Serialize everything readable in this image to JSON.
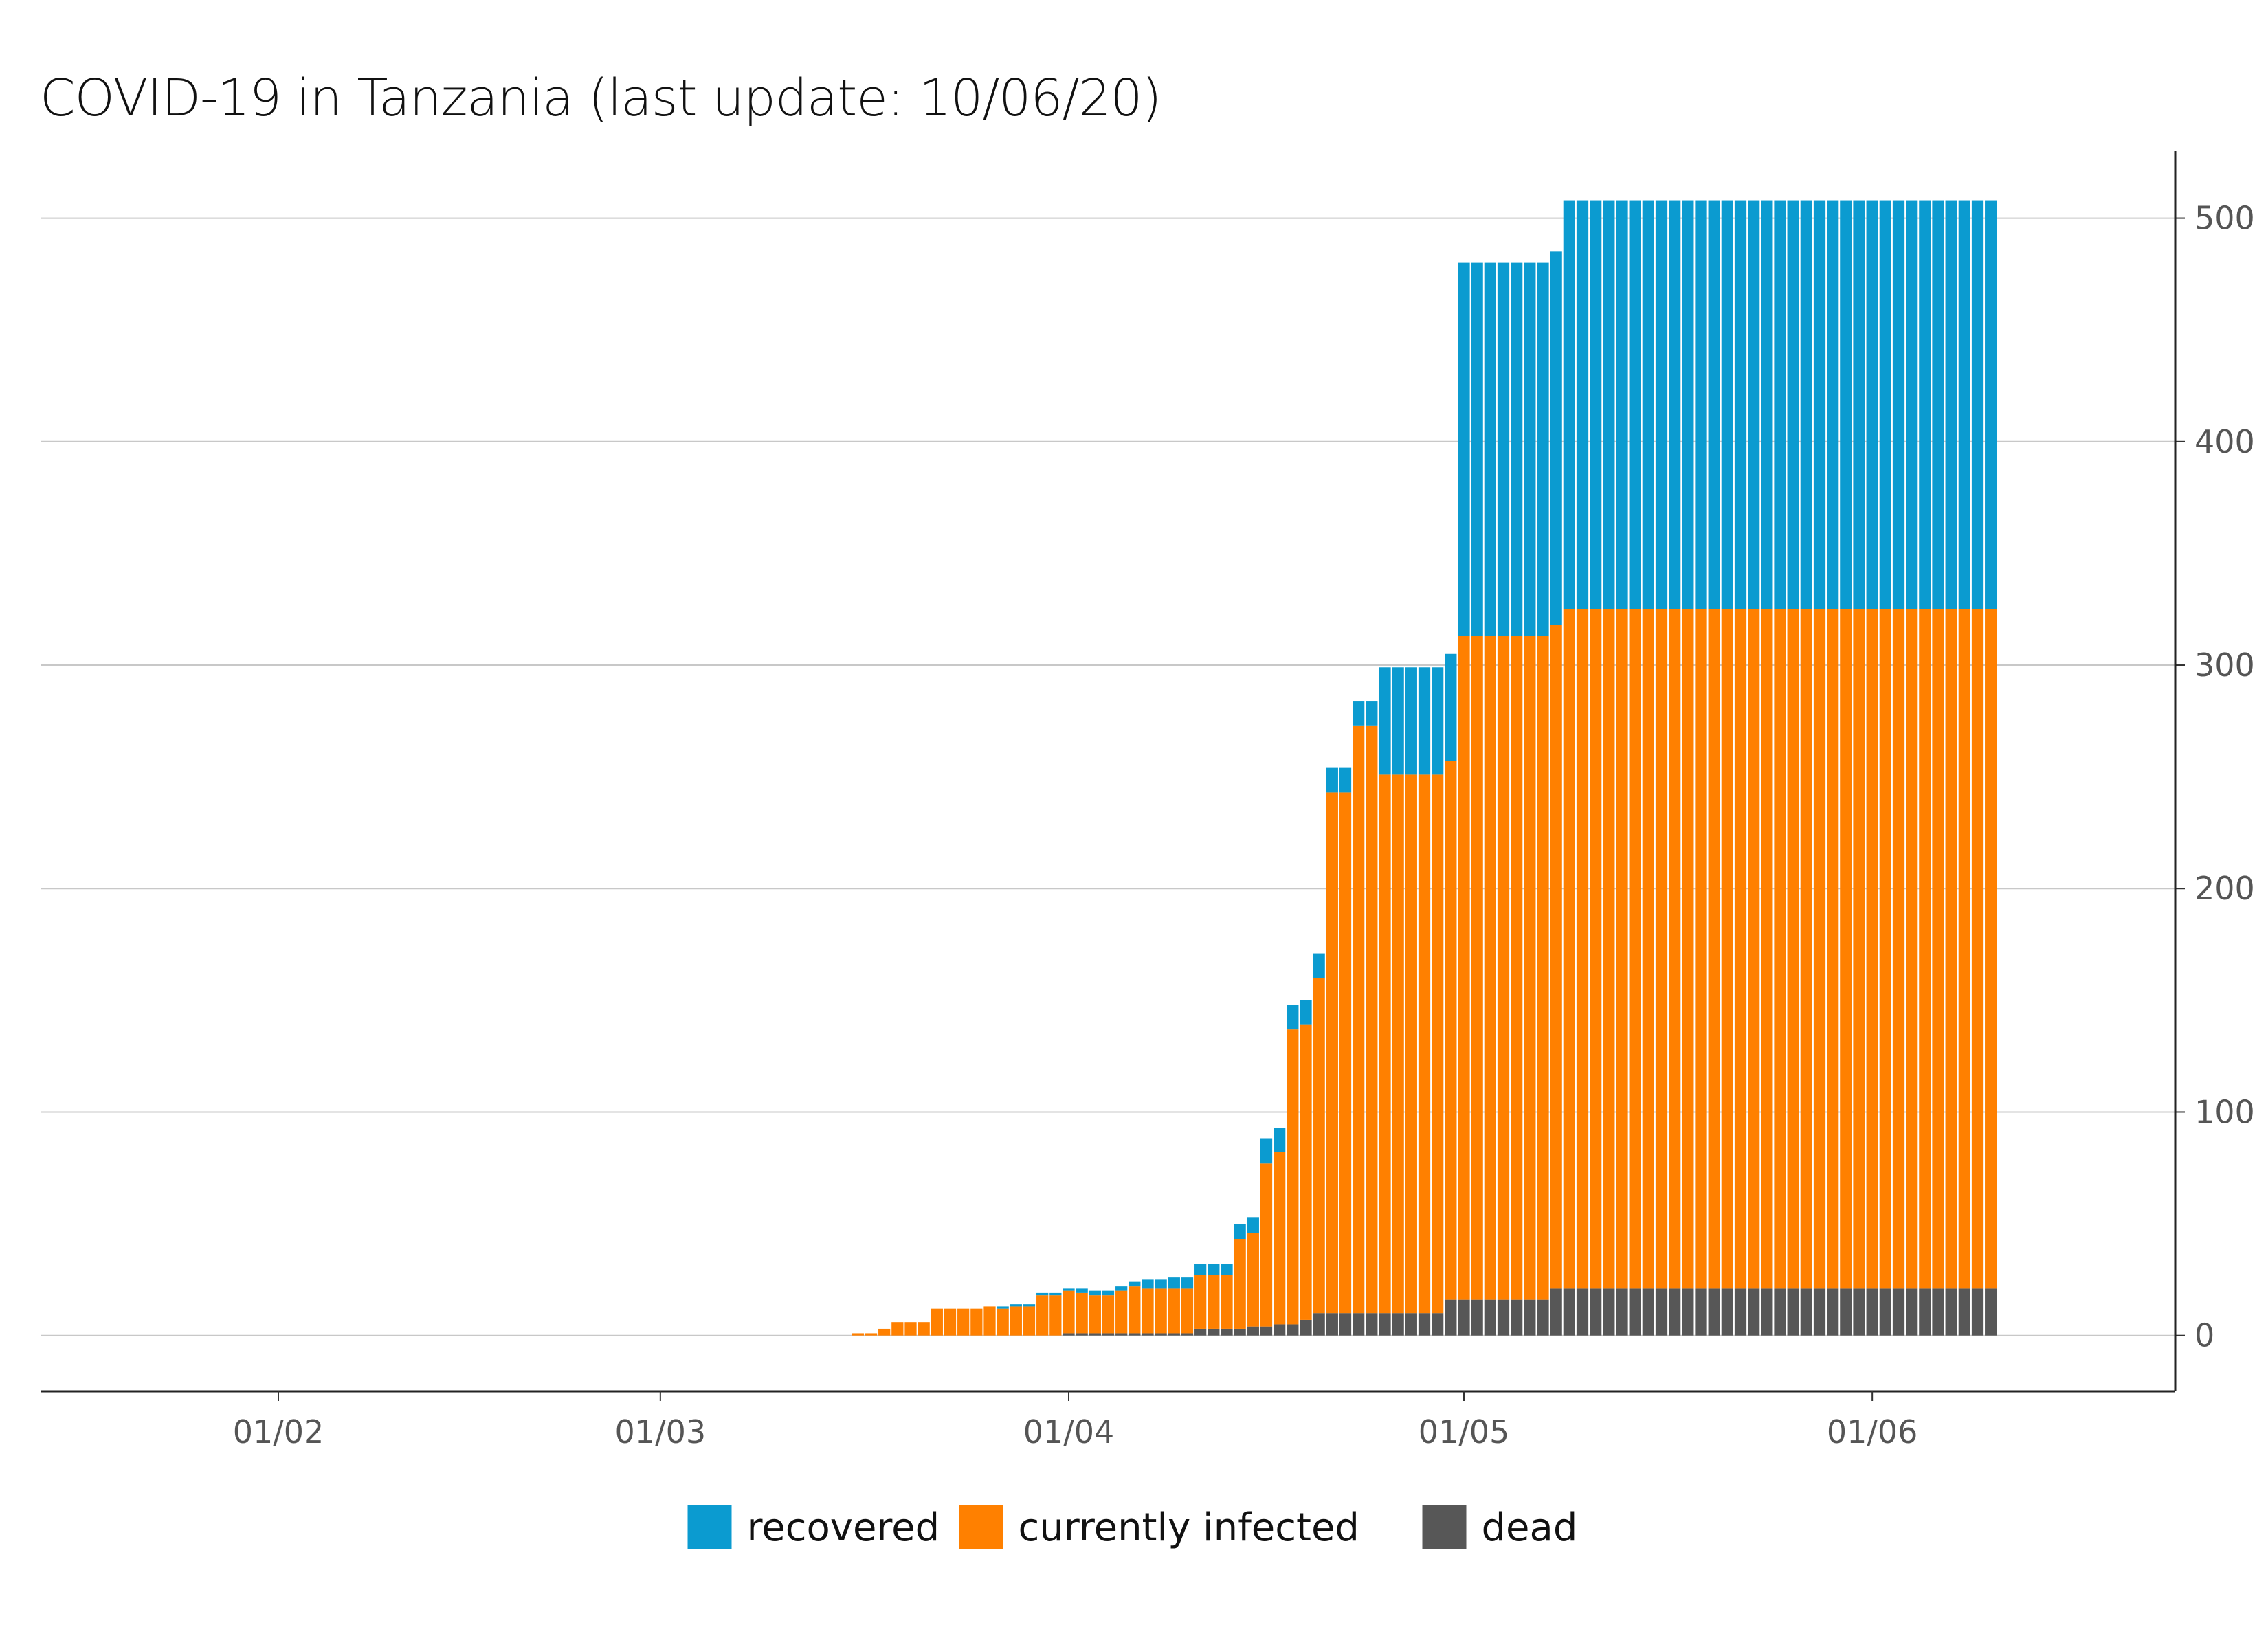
{
  "chart_data": {
    "type": "bar",
    "stacked": true,
    "title": "COVID-19 in Tanzania (last update: 10/06/20)",
    "xlabel": "",
    "ylabel": "",
    "x_range": [
      "2020-01-14",
      "2020-06-24"
    ],
    "ylim": [
      -25,
      530
    ],
    "y_ticks": [
      0,
      100,
      200,
      300,
      400,
      500
    ],
    "x_ticks": [
      {
        "date": "2020-02-01",
        "label": "01/02"
      },
      {
        "date": "2020-03-01",
        "label": "01/03"
      },
      {
        "date": "2020-04-01",
        "label": "01/04"
      },
      {
        "date": "2020-05-01",
        "label": "01/05"
      },
      {
        "date": "2020-06-01",
        "label": "01/06"
      }
    ],
    "y_axis_position": "right",
    "grid": "horizontal",
    "legend_position": "bottom",
    "legend": [
      "recovered",
      "currently infected",
      "dead"
    ],
    "colors": {
      "recovered": "#0b9bd0",
      "currently infected": "#ff8000",
      "dead": "#575757"
    },
    "dates": [
      "2020-03-16",
      "2020-03-17",
      "2020-03-18",
      "2020-03-19",
      "2020-03-20",
      "2020-03-21",
      "2020-03-22",
      "2020-03-23",
      "2020-03-24",
      "2020-03-25",
      "2020-03-26",
      "2020-03-27",
      "2020-03-28",
      "2020-03-29",
      "2020-03-30",
      "2020-03-31",
      "2020-04-01",
      "2020-04-02",
      "2020-04-03",
      "2020-04-04",
      "2020-04-05",
      "2020-04-06",
      "2020-04-07",
      "2020-04-08",
      "2020-04-09",
      "2020-04-10",
      "2020-04-11",
      "2020-04-12",
      "2020-04-13",
      "2020-04-14",
      "2020-04-15",
      "2020-04-16",
      "2020-04-17",
      "2020-04-18",
      "2020-04-19",
      "2020-04-20",
      "2020-04-21",
      "2020-04-22",
      "2020-04-23",
      "2020-04-24",
      "2020-04-25",
      "2020-04-26",
      "2020-04-27",
      "2020-04-28",
      "2020-04-29",
      "2020-04-30",
      "2020-05-01",
      "2020-05-02",
      "2020-05-03",
      "2020-05-04",
      "2020-05-05",
      "2020-05-06",
      "2020-05-07",
      "2020-05-08",
      "2020-05-09",
      "2020-05-10",
      "2020-05-11",
      "2020-05-12",
      "2020-05-13",
      "2020-05-14",
      "2020-05-15",
      "2020-05-16",
      "2020-05-17",
      "2020-05-18",
      "2020-05-19",
      "2020-05-20",
      "2020-05-21",
      "2020-05-22",
      "2020-05-23",
      "2020-05-24",
      "2020-05-25",
      "2020-05-26",
      "2020-05-27",
      "2020-05-28",
      "2020-05-29",
      "2020-05-30",
      "2020-05-31",
      "2020-06-01",
      "2020-06-02",
      "2020-06-03",
      "2020-06-04",
      "2020-06-05",
      "2020-06-06",
      "2020-06-07",
      "2020-06-08",
      "2020-06-09",
      "2020-06-10"
    ],
    "series": [
      {
        "name": "dead",
        "values": [
          0,
          0,
          0,
          0,
          0,
          0,
          0,
          0,
          0,
          0,
          0,
          0,
          0,
          0,
          0,
          0,
          1,
          1,
          1,
          1,
          1,
          1,
          1,
          1,
          1,
          1,
          3,
          3,
          3,
          3,
          4,
          4,
          5,
          5,
          7,
          10,
          10,
          10,
          10,
          10,
          10,
          10,
          10,
          10,
          10,
          16,
          16,
          16,
          16,
          16,
          16,
          16,
          16,
          21,
          21,
          21,
          21,
          21,
          21,
          21,
          21,
          21,
          21,
          21,
          21,
          21,
          21,
          21,
          21,
          21,
          21,
          21,
          21,
          21,
          21,
          21,
          21,
          21,
          21,
          21,
          21,
          21,
          21,
          21,
          21,
          21,
          21
        ]
      },
      {
        "name": "currently infected",
        "values": [
          1,
          1,
          3,
          6,
          6,
          6,
          12,
          12,
          12,
          12,
          13,
          12,
          13,
          13,
          18,
          18,
          19,
          18,
          17,
          17,
          19,
          21,
          20,
          20,
          20,
          20,
          24,
          24,
          24,
          40,
          42,
          73,
          77,
          132,
          132,
          150,
          233,
          233,
          263,
          263,
          241,
          241,
          241,
          241,
          241,
          241,
          297,
          297,
          297,
          297,
          297,
          297,
          297,
          297,
          304,
          304,
          304,
          304,
          304,
          304,
          304,
          304,
          304,
          304,
          304,
          304,
          304,
          304,
          304,
          304,
          304,
          304,
          304,
          304,
          304,
          304,
          304,
          304,
          304,
          304,
          304,
          304,
          304,
          304,
          304,
          304,
          304
        ]
      },
      {
        "name": "recovered",
        "values": [
          0,
          0,
          0,
          0,
          0,
          0,
          0,
          0,
          0,
          0,
          0,
          1,
          1,
          1,
          1,
          1,
          1,
          2,
          2,
          2,
          2,
          2,
          4,
          4,
          5,
          5,
          5,
          5,
          5,
          7,
          7,
          11,
          11,
          11,
          11,
          11,
          11,
          11,
          11,
          11,
          48,
          48,
          48,
          48,
          48,
          48,
          167,
          167,
          167,
          167,
          167,
          167,
          167,
          167,
          183,
          183,
          183,
          183,
          183,
          183,
          183,
          183,
          183,
          183,
          183,
          183,
          183,
          183,
          183,
          183,
          183,
          183,
          183,
          183,
          183,
          183,
          183,
          183,
          183,
          183,
          183,
          183,
          183,
          183,
          183,
          183,
          183
        ]
      }
    ]
  }
}
